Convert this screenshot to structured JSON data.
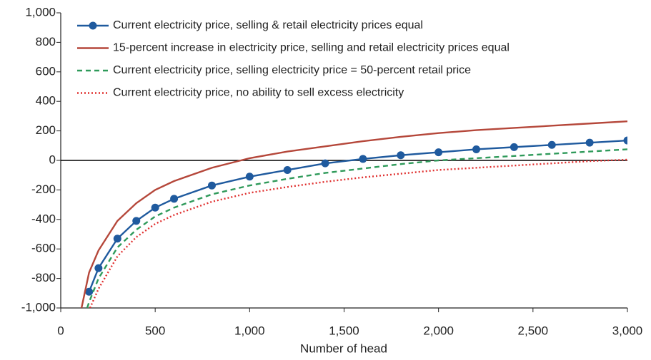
{
  "chart_data": {
    "type": "line",
    "x_label": "Number of head",
    "xlim": [
      0,
      3000
    ],
    "xticks": [
      0,
      500,
      {
        "value": 1000,
        "label": "1,000"
      },
      {
        "value": 1500,
        "label": "1,500"
      },
      {
        "value": 2000,
        "label": "2,000"
      },
      {
        "value": 2500,
        "label": "2,500"
      },
      {
        "value": 3000,
        "label": "3,000"
      }
    ],
    "ylim": [
      -1000,
      1000
    ],
    "yticks": [
      {
        "value": -1000,
        "label": "-1,000"
      },
      -800,
      -600,
      -400,
      -200,
      0,
      200,
      400,
      600,
      800,
      {
        "value": 1000,
        "label": "1,000"
      }
    ],
    "legend": "upper left",
    "series": [
      {
        "name": "Current electricity price, selling & retail electricity prices equal",
        "color": "#1f5a9e",
        "dash": "solid",
        "markers": true,
        "x": [
          150,
          200,
          300,
          400,
          500,
          600,
          800,
          1000,
          1200,
          1400,
          1600,
          1800,
          2000,
          2200,
          2400,
          2600,
          2800,
          3000
        ],
        "values": [
          -890,
          -730,
          -530,
          -410,
          -320,
          -260,
          -170,
          -110,
          -65,
          -20,
          10,
          35,
          55,
          75,
          90,
          105,
          120,
          135
        ]
      },
      {
        "name": "15-percent increase in electricity price, selling and retail electricity prices equal",
        "color": "#b5473a",
        "dash": "solid",
        "markers": false,
        "x": [
          110,
          150,
          200,
          300,
          400,
          500,
          600,
          800,
          1000,
          1200,
          1400,
          1600,
          1800,
          2000,
          2200,
          2400,
          2600,
          2800,
          3000
        ],
        "values": [
          -1000,
          -760,
          -610,
          -410,
          -290,
          -200,
          -140,
          -50,
          15,
          60,
          95,
          130,
          160,
          185,
          205,
          220,
          235,
          250,
          265
        ]
      },
      {
        "name": "Current electricity price, selling electricity price = 50-percent retail price",
        "color": "#2f9a5a",
        "dash": "dashed",
        "markers": false,
        "x": [
          140,
          150,
          200,
          300,
          400,
          500,
          600,
          800,
          1000,
          1200,
          1400,
          1600,
          1800,
          2000,
          2200,
          2400,
          2600,
          2800,
          3000
        ],
        "values": [
          -1000,
          -960,
          -800,
          -590,
          -470,
          -380,
          -320,
          -230,
          -170,
          -125,
          -85,
          -55,
          -25,
          0,
          15,
          30,
          45,
          60,
          75
        ]
      },
      {
        "name": "Current electricity price, no ability to sell excess electricity",
        "color": "#e0302f",
        "dash": "dotted",
        "markers": false,
        "x": [
          155,
          200,
          300,
          400,
          500,
          600,
          800,
          1000,
          1200,
          1400,
          1600,
          1800,
          2000,
          2200,
          2400,
          2600,
          2800,
          3000
        ],
        "values": [
          -1000,
          -870,
          -650,
          -520,
          -430,
          -370,
          -280,
          -220,
          -180,
          -145,
          -115,
          -90,
          -65,
          -50,
          -35,
          -20,
          -5,
          5
        ]
      }
    ]
  }
}
